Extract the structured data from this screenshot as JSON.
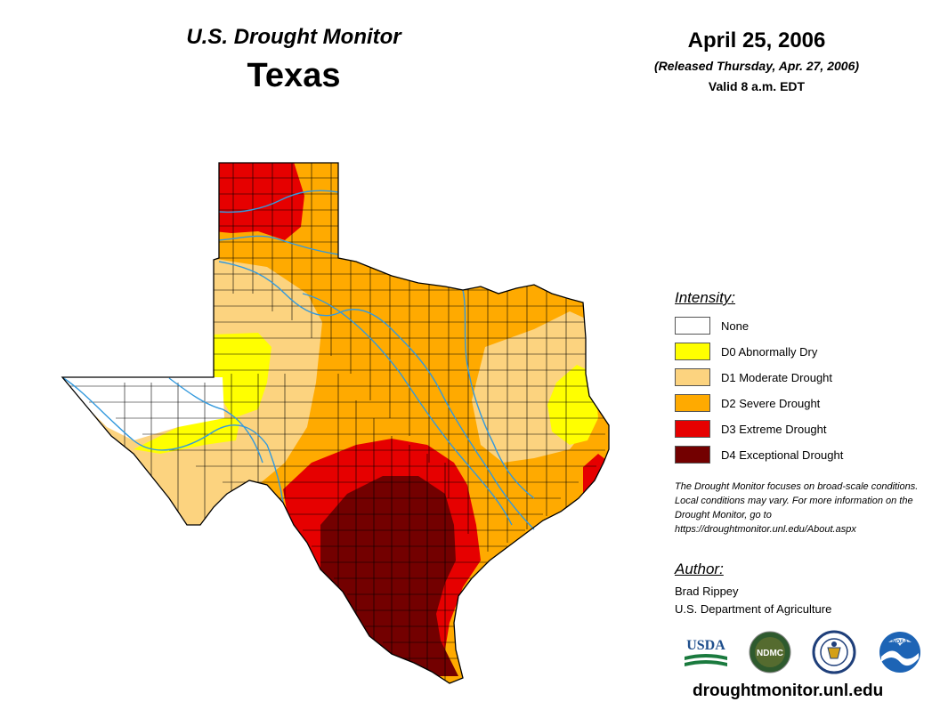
{
  "header": {
    "title_line1": "U.S. Drought Monitor",
    "title_line2": "Texas",
    "date": "April 25, 2006",
    "released": "(Released Thursday, Apr. 27, 2006)",
    "valid": "Valid 8 a.m. EDT"
  },
  "legend": {
    "title": "Intensity:",
    "items": [
      {
        "label": "None",
        "color": "#ffffff"
      },
      {
        "label": "D0 Abnormally Dry",
        "color": "#ffff00"
      },
      {
        "label": "D1 Moderate Drought",
        "color": "#fcd37f"
      },
      {
        "label": "D2 Severe Drought",
        "color": "#ffaa00"
      },
      {
        "label": "D3 Extreme Drought",
        "color": "#e60000"
      },
      {
        "label": "D4 Exceptional Drought",
        "color": "#730000"
      }
    ]
  },
  "note": "The Drought Monitor focuses on broad-scale conditions. Local conditions may vary. For more information on the Drought Monitor, go to https://droughtmonitor.unl.edu/About.aspx",
  "author": {
    "title": "Author:",
    "name": "Brad Rippey",
    "organization": "U.S. Department of Agriculture"
  },
  "logos": {
    "usda": "USDA",
    "ndmc": "NDMC",
    "doc": "seal-icon",
    "noaa": "NOAA"
  },
  "site_url": "droughtmonitor.unl.edu",
  "map": {
    "state": "Texas",
    "colors": {
      "none": "#ffffff",
      "d0": "#ffff00",
      "d1": "#fcd37f",
      "d2": "#ffaa00",
      "d3": "#e60000",
      "d4": "#730000",
      "river": "#3399dd",
      "county_line": "#000000"
    }
  }
}
